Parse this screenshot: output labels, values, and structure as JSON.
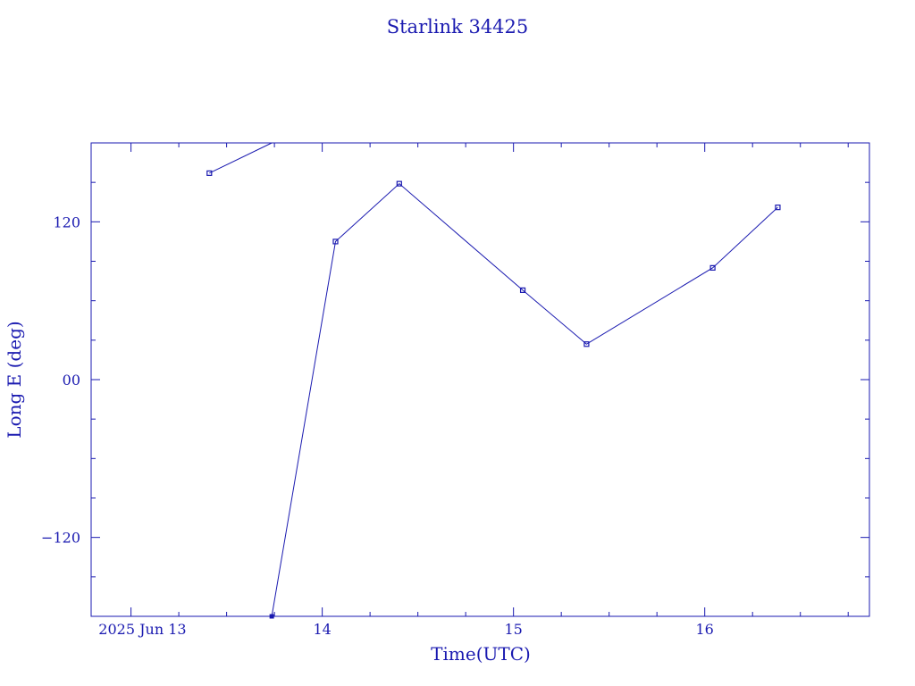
{
  "chart_data": {
    "type": "line",
    "title": "Starlink 34425",
    "xlabel": "Time(UTC)",
    "ylabel": "Long E (deg)",
    "xlim": [
      "2025-06-12T19:00",
      "2025-06-16T20:40"
    ],
    "ylim": [
      -180,
      180
    ],
    "x_ticks": [
      {
        "value": "2025-06-13T00:00",
        "label": "2025 Jun 13"
      },
      {
        "value": "2025-06-14T00:00",
        "label": "14"
      },
      {
        "value": "2025-06-15T00:00",
        "label": "15"
      },
      {
        "value": "2025-06-16T00:00",
        "label": "16"
      }
    ],
    "y_ticks": [
      {
        "value": 120,
        "label": "120"
      },
      {
        "value": 0,
        "label": "00"
      },
      {
        "value": -120,
        "label": "−120"
      }
    ],
    "grid": false,
    "color": "#1a1ab0",
    "series": [
      {
        "points": [
          {
            "x": "2025-06-13T09:50",
            "y": 157
          },
          {
            "x": "2025-06-13T17:40",
            "y": 180
          },
          {
            "x": "2025-06-13T17:40",
            "y": -180
          },
          {
            "x": "2025-06-14T01:40",
            "y": 105
          },
          {
            "x": "2025-06-14T09:40",
            "y": 149
          },
          {
            "x": "2025-06-15T01:10",
            "y": 68
          },
          {
            "x": "2025-06-15T09:10",
            "y": 27
          },
          {
            "x": "2025-06-16T01:00",
            "y": 85
          },
          {
            "x": "2025-06-16T09:10",
            "y": 131
          }
        ]
      }
    ]
  }
}
